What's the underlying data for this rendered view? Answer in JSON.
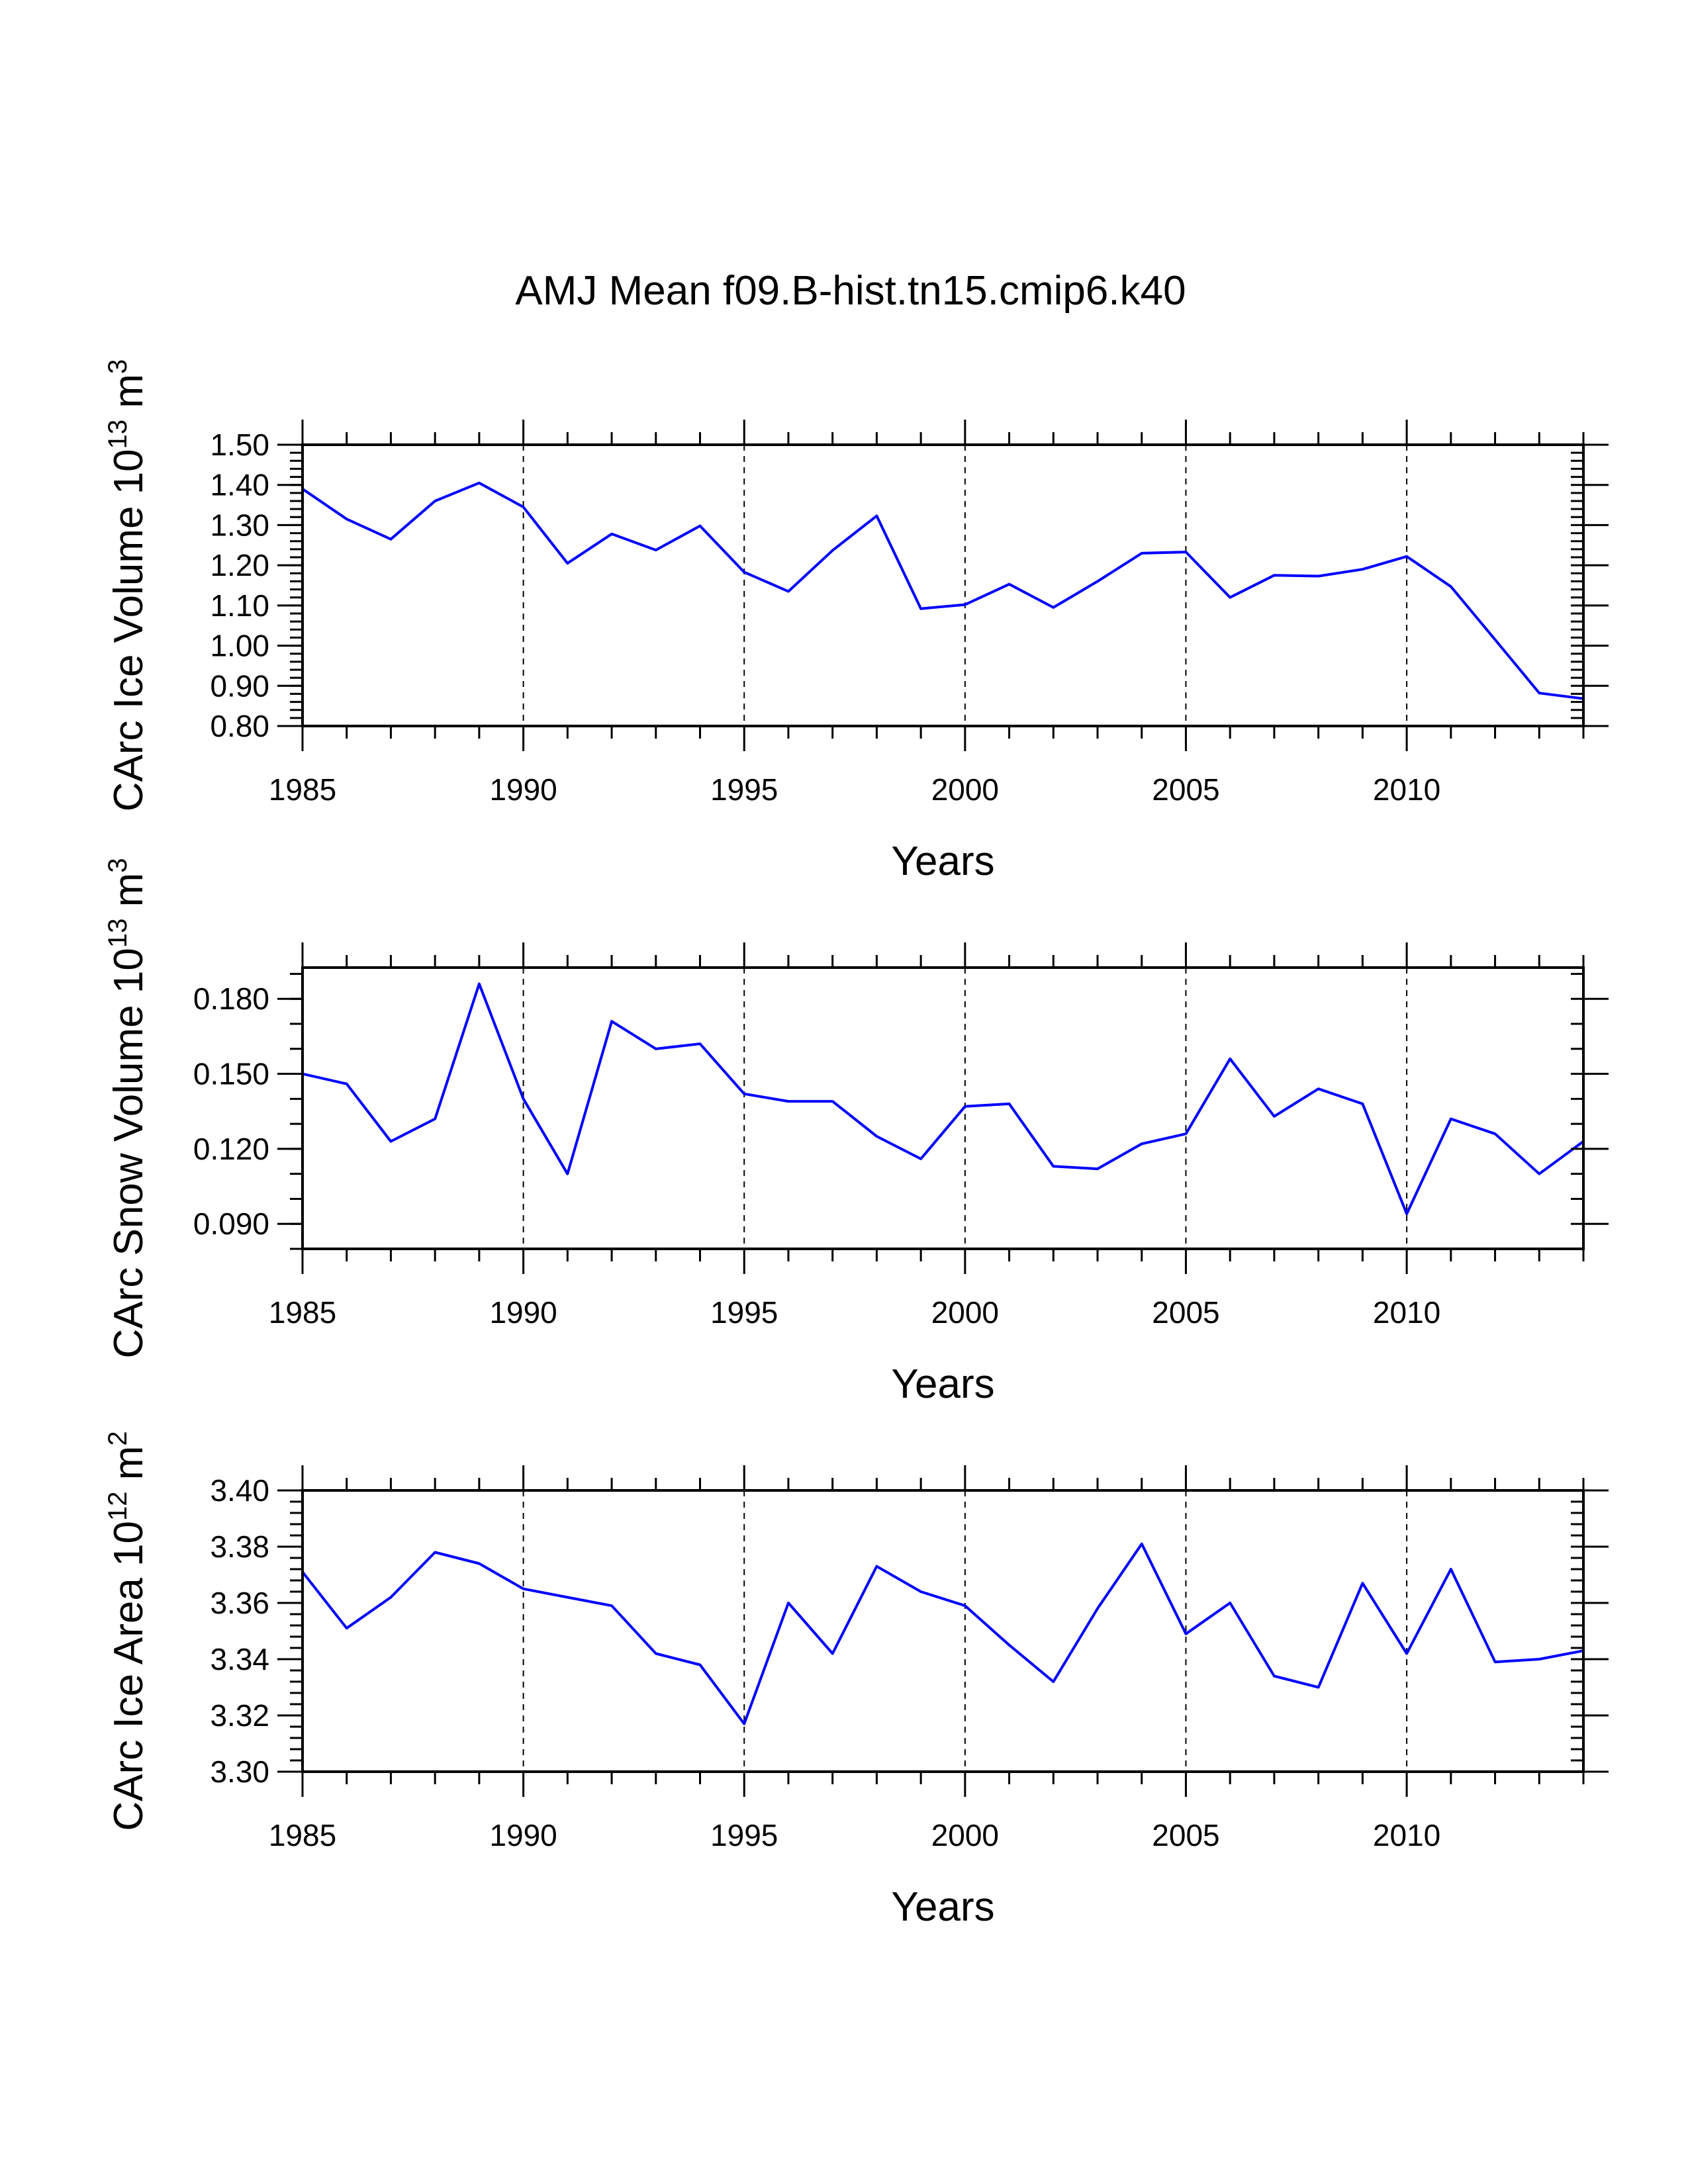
{
  "title": "AMJ Mean f09.B-hist.tn15.cmip6.k40",
  "colors": {
    "series": "#0000ff",
    "axes": "#000000",
    "grid": "#000000",
    "background": "#ffffff"
  },
  "chart_data": [
    {
      "type": "line",
      "title": "",
      "xlabel": "Years",
      "ylabel_text": "CArc Ice Volume 10",
      "ylabel_exp": "13",
      "ylabel_unit": " m",
      "ylabel_unit_exp": "3",
      "xlim": [
        1985,
        2014
      ],
      "ylim": [
        0.8,
        1.5
      ],
      "x_ticks": [
        1985,
        1990,
        1995,
        2000,
        2005,
        2010
      ],
      "x_tick_labels": [
        "1985",
        "1990",
        "1995",
        "2000",
        "2005",
        "2010"
      ],
      "y_ticks": [
        0.8,
        0.9,
        1.0,
        1.1,
        1.2,
        1.3,
        1.4,
        1.5
      ],
      "y_tick_labels": [
        "0.80",
        "0.90",
        "1.00",
        "1.10",
        "1.20",
        "1.30",
        "1.40",
        "1.50"
      ],
      "y_minor_step": 0.02,
      "grid_x": [
        1990,
        1995,
        2000,
        2005,
        2010
      ],
      "series": [
        {
          "name": "CArc Ice Volume",
          "x": [
            1985,
            1986,
            1987,
            1988,
            1989,
            1990,
            1991,
            1992,
            1993,
            1994,
            1995,
            1996,
            1997,
            1998,
            1999,
            2000,
            2001,
            2002,
            2003,
            2004,
            2005,
            2006,
            2007,
            2008,
            2009,
            2010,
            2011,
            2012,
            2013,
            2014
          ],
          "values": [
            1.39,
            1.315,
            1.265,
            1.36,
            1.405,
            1.345,
            1.205,
            1.278,
            1.238,
            1.298,
            1.183,
            1.135,
            1.237,
            1.323,
            1.092,
            1.102,
            1.153,
            1.095,
            1.16,
            1.23,
            1.233,
            1.12,
            1.175,
            1.173,
            1.19,
            1.222,
            1.147,
            1.015,
            0.882,
            0.868
          ]
        }
      ]
    },
    {
      "type": "line",
      "title": "",
      "xlabel": "Years",
      "ylabel_text": "CArc Snow Volume 10",
      "ylabel_exp": "13",
      "ylabel_unit": " m",
      "ylabel_unit_exp": "3",
      "xlim": [
        1985,
        2014
      ],
      "ylim": [
        0.08,
        0.1925
      ],
      "x_ticks": [
        1985,
        1990,
        1995,
        2000,
        2005,
        2010
      ],
      "x_tick_labels": [
        "1985",
        "1990",
        "1995",
        "2000",
        "2005",
        "2010"
      ],
      "y_ticks": [
        0.09,
        0.12,
        0.15,
        0.18
      ],
      "y_tick_labels": [
        "0.090",
        "0.120",
        "0.150",
        "0.180"
      ],
      "y_minor_step": 0.01,
      "grid_x": [
        1990,
        1995,
        2000,
        2005,
        2010
      ],
      "series": [
        {
          "name": "CArc Snow Volume",
          "x": [
            1985,
            1986,
            1987,
            1988,
            1989,
            1990,
            1991,
            1992,
            1993,
            1994,
            1995,
            1996,
            1997,
            1998,
            1999,
            2000,
            2001,
            2002,
            2003,
            2004,
            2005,
            2006,
            2007,
            2008,
            2009,
            2010,
            2011,
            2012,
            2013,
            2014
          ],
          "values": [
            0.15,
            0.146,
            0.123,
            0.132,
            0.186,
            0.14,
            0.11,
            0.171,
            0.16,
            0.162,
            0.142,
            0.139,
            0.139,
            0.125,
            0.116,
            0.137,
            0.138,
            0.113,
            0.112,
            0.122,
            0.126,
            0.156,
            0.133,
            0.144,
            0.138,
            0.094,
            0.132,
            0.126,
            0.11,
            0.123
          ]
        }
      ]
    },
    {
      "type": "line",
      "title": "",
      "xlabel": "Years",
      "ylabel_text": "CArc Ice Area 10",
      "ylabel_exp": "12",
      "ylabel_unit": " m",
      "ylabel_unit_exp": "2",
      "xlim": [
        1985,
        2014
      ],
      "ylim": [
        3.3,
        3.4
      ],
      "x_ticks": [
        1985,
        1990,
        1995,
        2000,
        2005,
        2010
      ],
      "x_tick_labels": [
        "1985",
        "1990",
        "1995",
        "2000",
        "2005",
        "2010"
      ],
      "y_ticks": [
        3.3,
        3.32,
        3.34,
        3.36,
        3.38,
        3.4
      ],
      "y_tick_labels": [
        "3.30",
        "3.32",
        "3.34",
        "3.36",
        "3.38",
        "3.40"
      ],
      "y_minor_step": 0.004,
      "grid_x": [
        1990,
        1995,
        2000,
        2005,
        2010
      ],
      "series": [
        {
          "name": "CArc Ice Area",
          "x": [
            1985,
            1986,
            1987,
            1988,
            1989,
            1990,
            1991,
            1992,
            1993,
            1994,
            1995,
            1996,
            1997,
            1998,
            1999,
            2000,
            2001,
            2002,
            2003,
            2004,
            2005,
            2006,
            2007,
            2008,
            2009,
            2010,
            2011,
            2012,
            2013,
            2014
          ],
          "values": [
            3.371,
            3.351,
            3.362,
            3.378,
            3.374,
            3.365,
            3.362,
            3.359,
            3.342,
            3.338,
            3.317,
            3.36,
            3.342,
            3.373,
            3.364,
            3.359,
            3.345,
            3.332,
            3.358,
            3.381,
            3.349,
            3.36,
            3.334,
            3.33,
            3.367,
            3.342,
            3.372,
            3.339,
            3.34,
            3.343
          ]
        }
      ]
    }
  ]
}
